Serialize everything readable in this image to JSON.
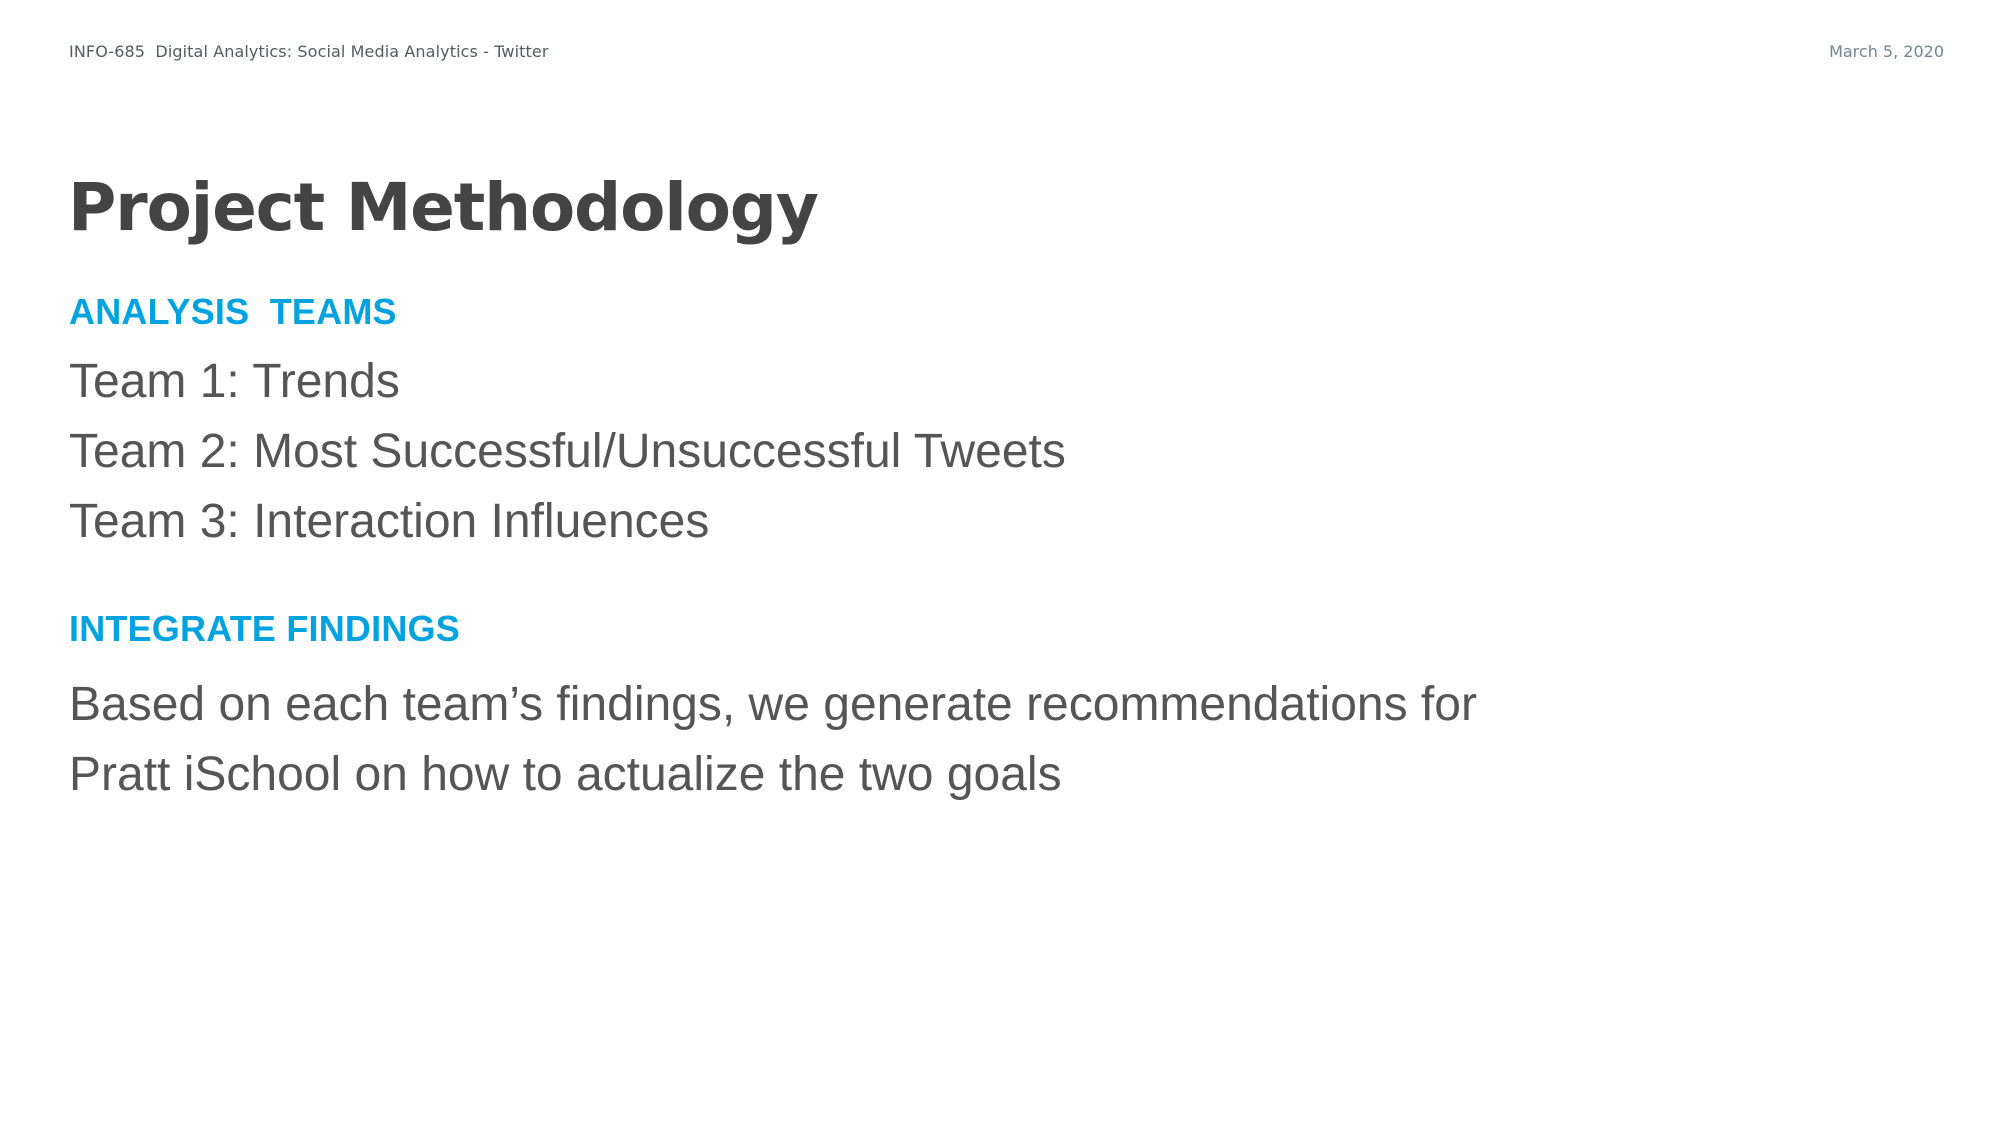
{
  "header": {
    "course": "INFO-685  Digital Analytics: Social Media Analytics - Twitter",
    "date": "March 5, 2020"
  },
  "title": "Project Methodology",
  "analysis_teams": {
    "heading": "ANALYSIS  TEAMS",
    "items": [
      "Team 1: Trends",
      "Team 2: Most Successful/Unsuccessful Tweets",
      "Team 3: Interaction Influences"
    ]
  },
  "integrate_findings": {
    "heading": "INTEGRATE FINDINGS",
    "lines": [
      "Based on each team’s findings, we generate recommendations for",
      "Pratt iSchool on how to actualize the two goals"
    ]
  },
  "colors": {
    "heading_accent": "#00a3e0",
    "title": "#444444",
    "body_text": "#555555",
    "date": "#6e8792"
  }
}
